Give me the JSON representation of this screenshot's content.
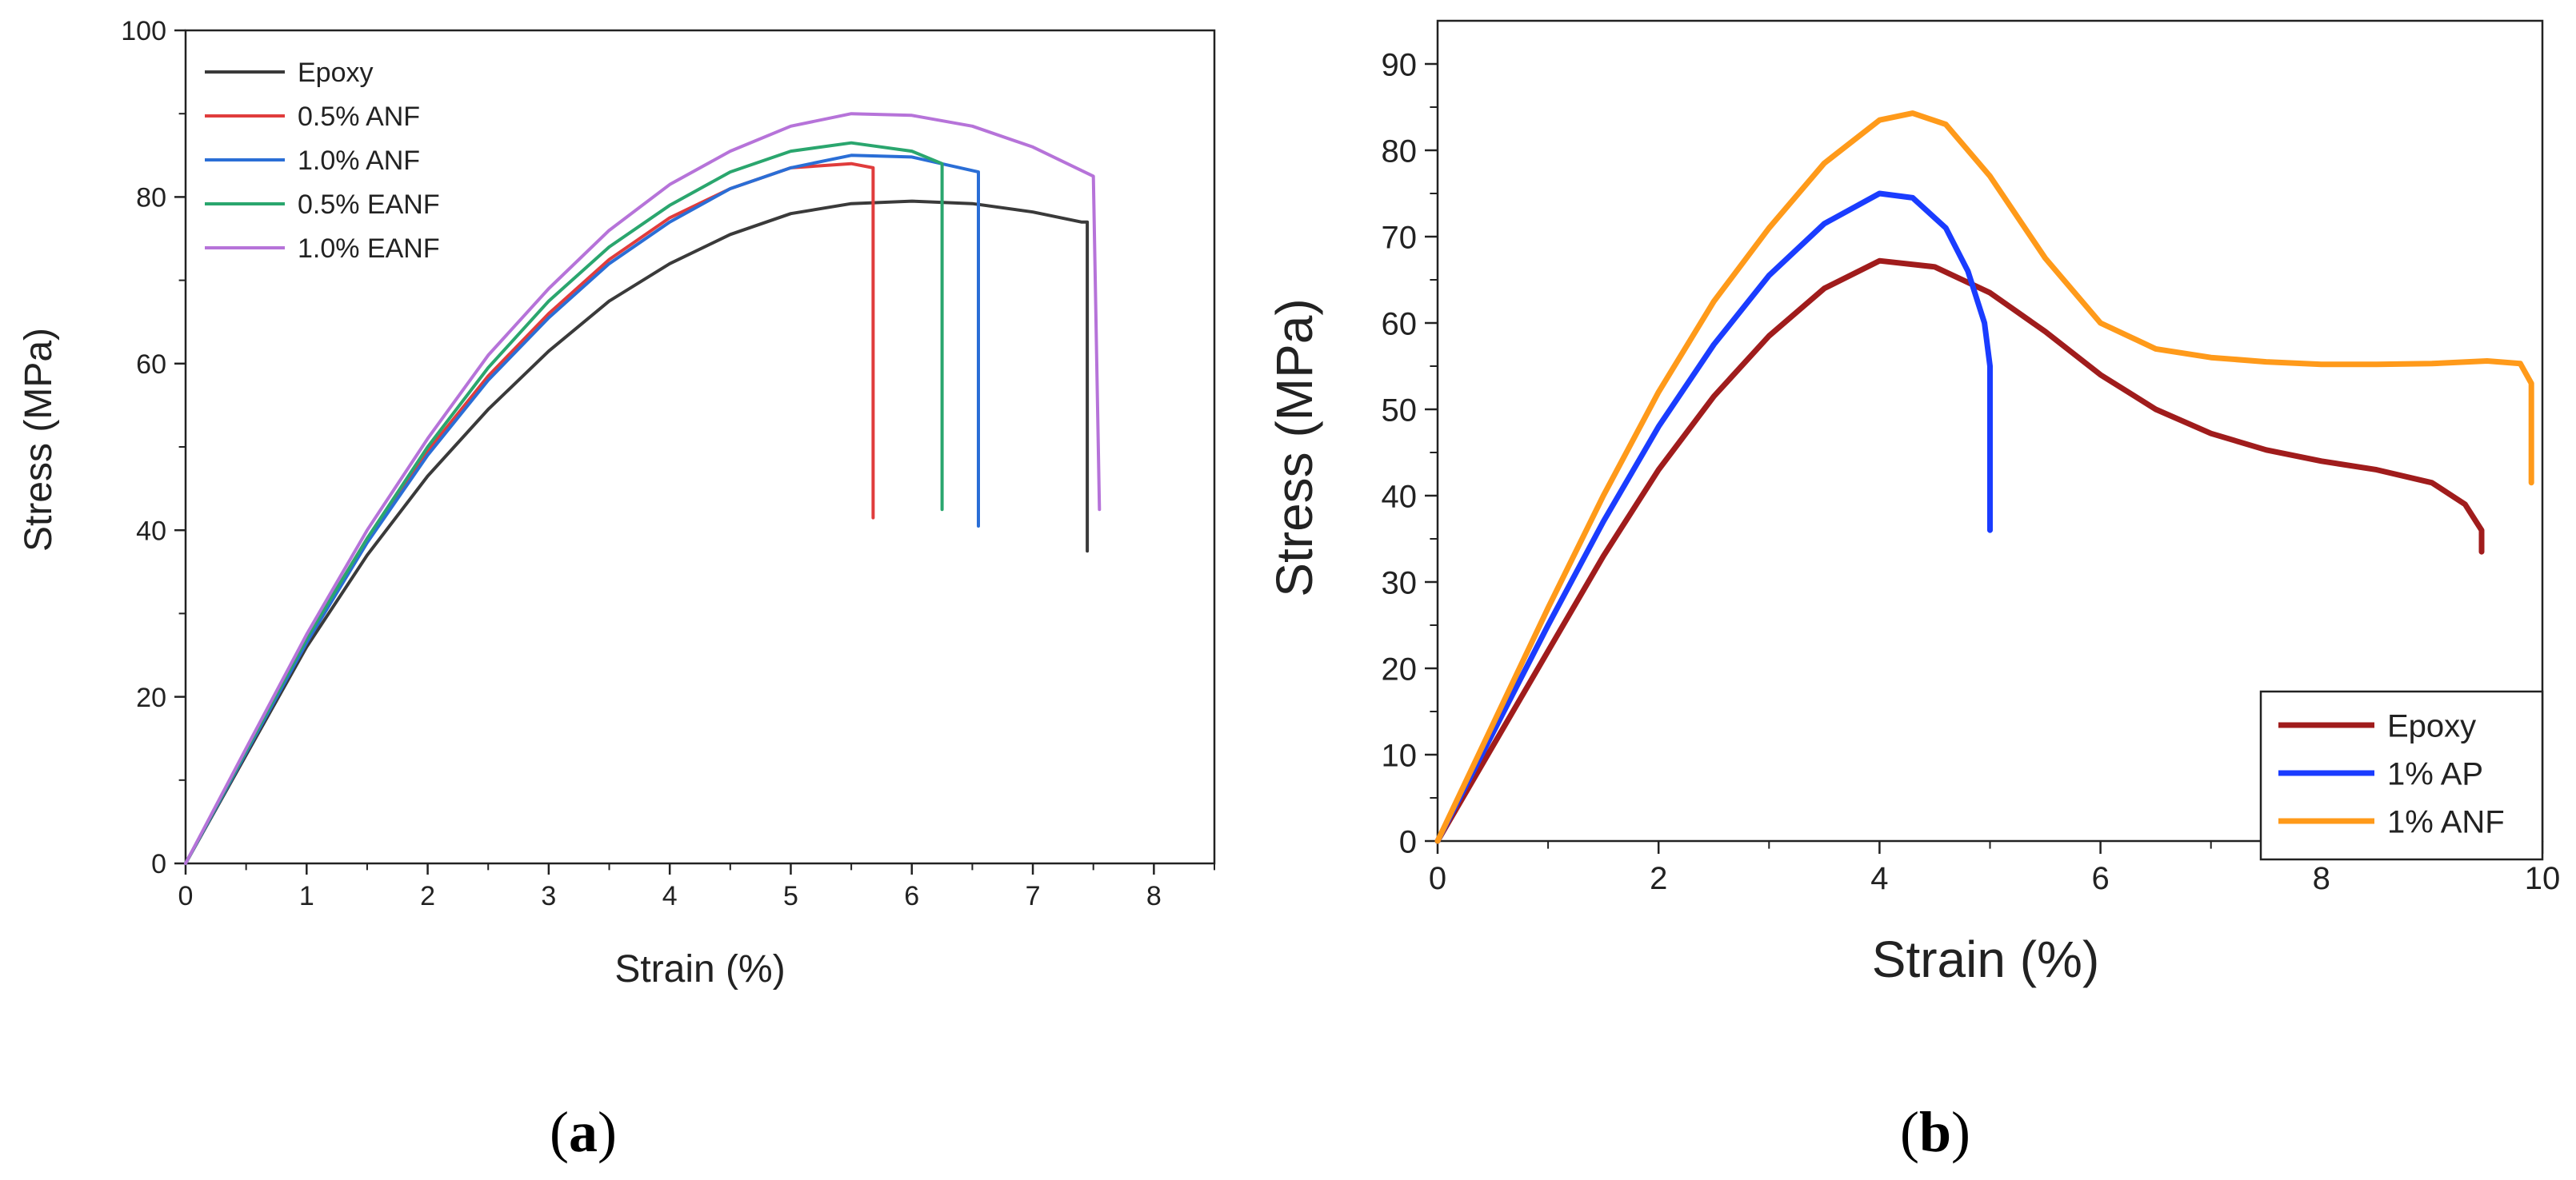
{
  "chart_data": [
    {
      "panel": "a",
      "type": "line",
      "caption": "a",
      "xlabel": "Strain (%)",
      "ylabel": "Stress (MPa)",
      "xlim": [
        0,
        8.5
      ],
      "ylim": [
        0,
        100
      ],
      "xticks": [
        0,
        1,
        2,
        3,
        4,
        5,
        6,
        7,
        8
      ],
      "yticks": [
        0,
        20,
        40,
        60,
        80,
        100
      ],
      "legend_position": "top-left",
      "series": [
        {
          "name": "Epoxy",
          "color": "#3a3a3a",
          "x": [
            0,
            0.5,
            1,
            1.5,
            2,
            2.5,
            3,
            3.5,
            4,
            4.5,
            5,
            5.5,
            6,
            6.5,
            7,
            7.4,
            7.45,
            7.45
          ],
          "y": [
            0,
            13,
            26,
            37,
            46.5,
            54.5,
            61.5,
            67.5,
            72,
            75.5,
            78,
            79.2,
            79.5,
            79.2,
            78.2,
            77,
            77,
            37.5
          ]
        },
        {
          "name": "0.5% ANF",
          "color": "#e03c3c",
          "x": [
            0,
            0.5,
            1,
            1.5,
            2,
            2.5,
            3,
            3.5,
            4,
            4.5,
            5,
            5.5,
            5.68,
            5.68
          ],
          "y": [
            0,
            13.5,
            27,
            39,
            49.5,
            58.5,
            66,
            72.5,
            77.5,
            81,
            83.5,
            84,
            83.5,
            41.5
          ]
        },
        {
          "name": "1.0% ANF",
          "color": "#2a6ed6",
          "x": [
            0,
            0.5,
            1,
            1.5,
            2,
            2.5,
            3,
            3.5,
            4,
            4.5,
            5,
            5.5,
            6,
            6.55,
            6.55
          ],
          "y": [
            0,
            13.3,
            26.5,
            38.5,
            49,
            58,
            65.5,
            72,
            77,
            81,
            83.5,
            85,
            84.8,
            83,
            40.5
          ]
        },
        {
          "name": "0.5% EANF",
          "color": "#2aa66e",
          "x": [
            0,
            0.5,
            1,
            1.5,
            2,
            2.5,
            3,
            3.5,
            4,
            4.5,
            5,
            5.5,
            6,
            6.25,
            6.25
          ],
          "y": [
            0,
            13.5,
            27,
            39,
            50,
            59.5,
            67.5,
            74,
            79,
            83,
            85.5,
            86.5,
            85.5,
            84,
            42.5
          ]
        },
        {
          "name": "1.0% EANF",
          "color": "#b673d9",
          "x": [
            0,
            0.5,
            1,
            1.5,
            2,
            2.5,
            3,
            3.5,
            4,
            4.5,
            5,
            5.5,
            6,
            6.5,
            7,
            7.5,
            7.55
          ],
          "y": [
            0,
            13.8,
            27.5,
            40,
            51,
            61,
            69,
            76,
            81.5,
            85.5,
            88.5,
            90,
            89.8,
            88.5,
            86,
            82.5,
            42.5
          ]
        }
      ]
    },
    {
      "panel": "b",
      "type": "line",
      "caption": "b",
      "xlabel": "Strain (%)",
      "ylabel": "Stress (MPa)",
      "xlim": [
        0,
        10
      ],
      "ylim": [
        0,
        95
      ],
      "xticks": [
        0,
        2,
        4,
        6,
        8,
        10
      ],
      "yticks": [
        0,
        10,
        20,
        30,
        40,
        50,
        60,
        70,
        80,
        90
      ],
      "legend_position": "bottom-right",
      "series": [
        {
          "name": "Epoxy",
          "color": "#a01c1c",
          "x": [
            0,
            0.5,
            1,
            1.5,
            2,
            2.5,
            3,
            3.5,
            4,
            4.5,
            5,
            5.5,
            6,
            6.5,
            7,
            7.5,
            8,
            8.5,
            9,
            9.3,
            9.45,
            9.45
          ],
          "y": [
            0,
            11,
            22,
            33,
            43,
            51.5,
            58.5,
            64,
            67.2,
            66.5,
            63.5,
            59,
            54,
            50,
            47.2,
            45.3,
            44,
            43,
            41.5,
            39,
            36,
            33.5
          ]
        },
        {
          "name": "1% AP",
          "color": "#1a3cff",
          "x": [
            0,
            0.5,
            1,
            1.5,
            2,
            2.5,
            3,
            3.5,
            4,
            4.3,
            4.6,
            4.8,
            4.95,
            5.0,
            5.0
          ],
          "y": [
            0,
            12.5,
            25,
            37,
            48,
            57.5,
            65.5,
            71.5,
            75,
            74.5,
            71,
            66,
            60,
            55,
            36
          ]
        },
        {
          "name": "1% ANF",
          "color": "#ff9a1a",
          "x": [
            0,
            0.5,
            1,
            1.5,
            2,
            2.5,
            3,
            3.5,
            4,
            4.3,
            4.6,
            5,
            5.5,
            6,
            6.5,
            7,
            7.5,
            8,
            8.5,
            9,
            9.5,
            9.8,
            9.9,
            9.9
          ],
          "y": [
            0,
            13.5,
            27,
            40,
            52,
            62.5,
            71,
            78.5,
            83.5,
            84.3,
            83,
            77,
            67.5,
            60,
            57,
            56,
            55.5,
            55.2,
            55.2,
            55.3,
            55.6,
            55.3,
            53,
            41.5
          ]
        }
      ]
    }
  ]
}
